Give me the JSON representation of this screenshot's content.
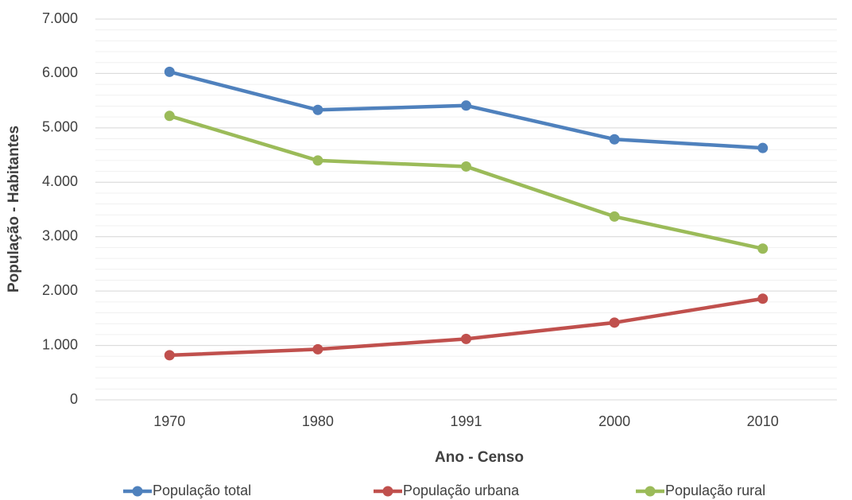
{
  "chart_data": {
    "type": "line",
    "x_label": "Ano - Censo",
    "y_label": "População - Habitantes",
    "categories": [
      "1970",
      "1980",
      "1991",
      "2000",
      "2010"
    ],
    "series": [
      {
        "name": "População total",
        "color": "#4f81bd",
        "values": [
          6030,
          5330,
          5410,
          4790,
          4630
        ]
      },
      {
        "name": "População urbana",
        "color": "#c0504d",
        "values": [
          820,
          930,
          1120,
          1420,
          1860
        ]
      },
      {
        "name": "População rural",
        "color": "#9bbb59",
        "values": [
          5220,
          4400,
          4290,
          3370,
          2780
        ]
      }
    ],
    "ylim": [
      0,
      7000
    ],
    "yticks": [
      0,
      {
        "value": 1000,
        "label": "1.000"
      },
      {
        "value": 2000,
        "label": "2.000"
      },
      {
        "value": 3000,
        "label": "3.000"
      },
      {
        "value": 4000,
        "label": "4.000"
      },
      {
        "value": 5000,
        "label": "5.000"
      },
      {
        "value": 6000,
        "label": "6.000"
      },
      {
        "value": 7000,
        "label": "7.000"
      }
    ],
    "grid": true,
    "minor_grid_step": 200,
    "legend": "bottom"
  }
}
